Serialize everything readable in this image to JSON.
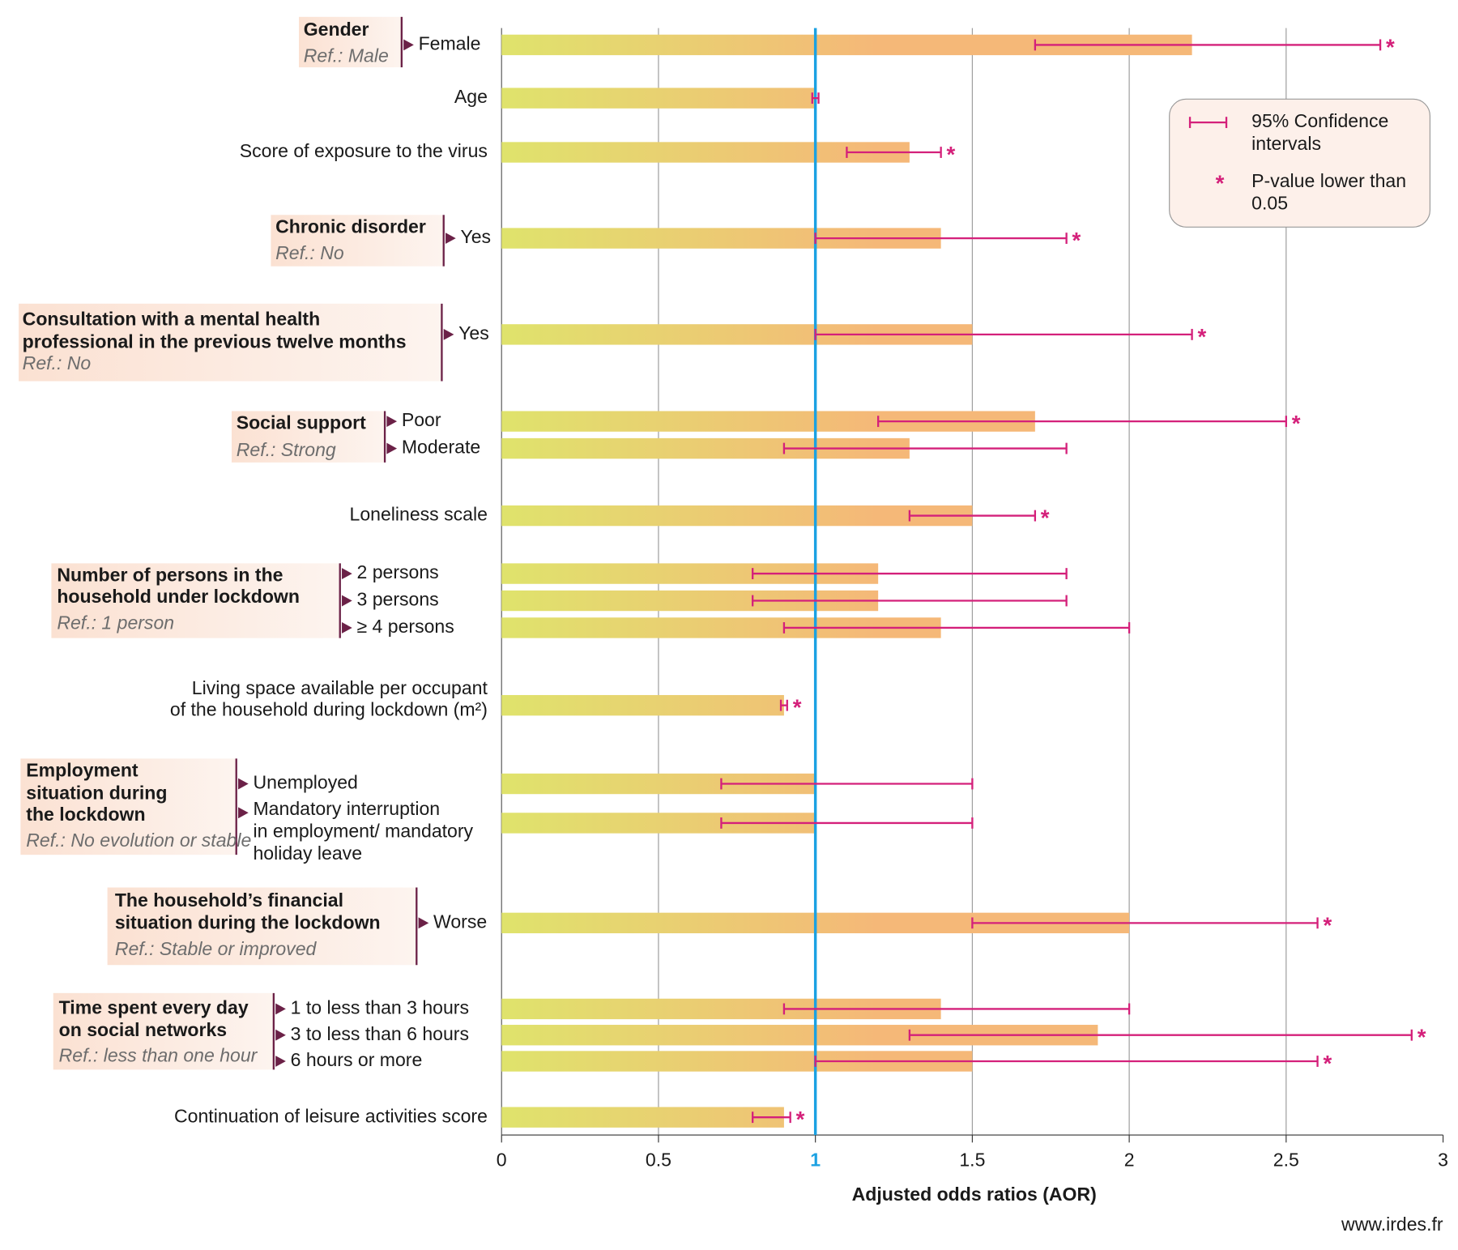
{
  "chart_data": {
    "type": "bar",
    "orientation": "horizontal",
    "categories": [
      [
        "Female"
      ],
      [
        "Age"
      ],
      [
        "Score of exposure to the virus"
      ],
      [
        "Yes"
      ],
      [
        "Yes"
      ],
      [
        "Poor"
      ],
      [
        "Moderate"
      ],
      [
        "Loneliness scale"
      ],
      [
        "2 persons"
      ],
      [
        "3 persons"
      ],
      [
        "≥ 4 persons"
      ],
      [
        "Living space available per occupant",
        "of the household during lockdown (m²)"
      ],
      [
        "Unemployed"
      ],
      [
        "Mandatory interruption",
        "in employment/ mandatory",
        "holiday leave"
      ],
      [
        "Worse"
      ],
      [
        "1 to less than 3 hours"
      ],
      [
        "3 to less than 6 hours"
      ],
      [
        "6 hours or more"
      ],
      [
        "Continuation of  leisure activities score"
      ]
    ],
    "values": [
      2.2,
      1.0,
      1.3,
      1.4,
      1.5,
      1.7,
      1.3,
      1.5,
      1.2,
      1.2,
      1.4,
      0.9,
      1.0,
      1.0,
      2.0,
      1.4,
      1.9,
      1.5,
      0.9
    ],
    "ci": [
      [
        1.7,
        2.8
      ],
      [
        0.99,
        1.01
      ],
      [
        1.1,
        1.4
      ],
      [
        1.0,
        1.8
      ],
      [
        1.0,
        2.2
      ],
      [
        1.2,
        2.5
      ],
      [
        0.9,
        1.8
      ],
      [
        1.3,
        1.7
      ],
      [
        0.8,
        1.8
      ],
      [
        0.8,
        1.8
      ],
      [
        0.9,
        2.0
      ],
      [
        0.89,
        0.91
      ],
      [
        0.7,
        1.5
      ],
      [
        0.7,
        1.5
      ],
      [
        1.5,
        2.6
      ],
      [
        0.9,
        2.0
      ],
      [
        1.3,
        2.9
      ],
      [
        1.0,
        2.6
      ],
      [
        0.8,
        0.92
      ]
    ],
    "significant": [
      true,
      false,
      true,
      true,
      true,
      true,
      false,
      true,
      false,
      false,
      false,
      true,
      false,
      false,
      true,
      false,
      true,
      true,
      true
    ],
    "groups": [
      {
        "title": [
          "Gender"
        ],
        "ref": "Ref.: Male"
      },
      {
        "title": [
          "Chronic disorder"
        ],
        "ref": "Ref.: No"
      },
      {
        "title": [
          "Consultation with a mental health",
          "professional in the previous twelve  months"
        ],
        "ref": "Ref.: No"
      },
      {
        "title": [
          "Social support"
        ],
        "ref": "Ref.: Strong"
      },
      {
        "title": [
          "Number of persons in the",
          "household under lockdown"
        ],
        "ref": "Ref.: 1 person"
      },
      {
        "title": [
          "Employment",
          "situation during",
          "the lockdown"
        ],
        "ref": "Ref.: No evolution or stable"
      },
      {
        "title": [
          "The household’s financial",
          "situation during the lockdown"
        ],
        "ref": "Ref.: Stable or improved"
      },
      {
        "title": [
          "Time spent every day",
          " on social networks"
        ],
        "ref": "Ref.: less than one hour"
      }
    ],
    "xlim": [
      0,
      3
    ],
    "xticks": [
      0,
      0.5,
      1,
      1.5,
      2,
      2.5,
      3
    ],
    "reference_line": 1,
    "grid": true,
    "xlabel": "Adjusted odds ratios (AOR)",
    "source": "www.irdes.fr",
    "legend": {
      "ci_label": [
        "95% Confidence",
        "intervals"
      ],
      "significance_label": [
        "P-value lower than",
        "0.05"
      ],
      "marker": "*"
    },
    "bar_colors": [
      "#dfe36c",
      "#f5b878"
    ],
    "ci_color": "#d4207a",
    "reference_color": "#1ba1e2",
    "bracket_color": "#6b2147"
  }
}
